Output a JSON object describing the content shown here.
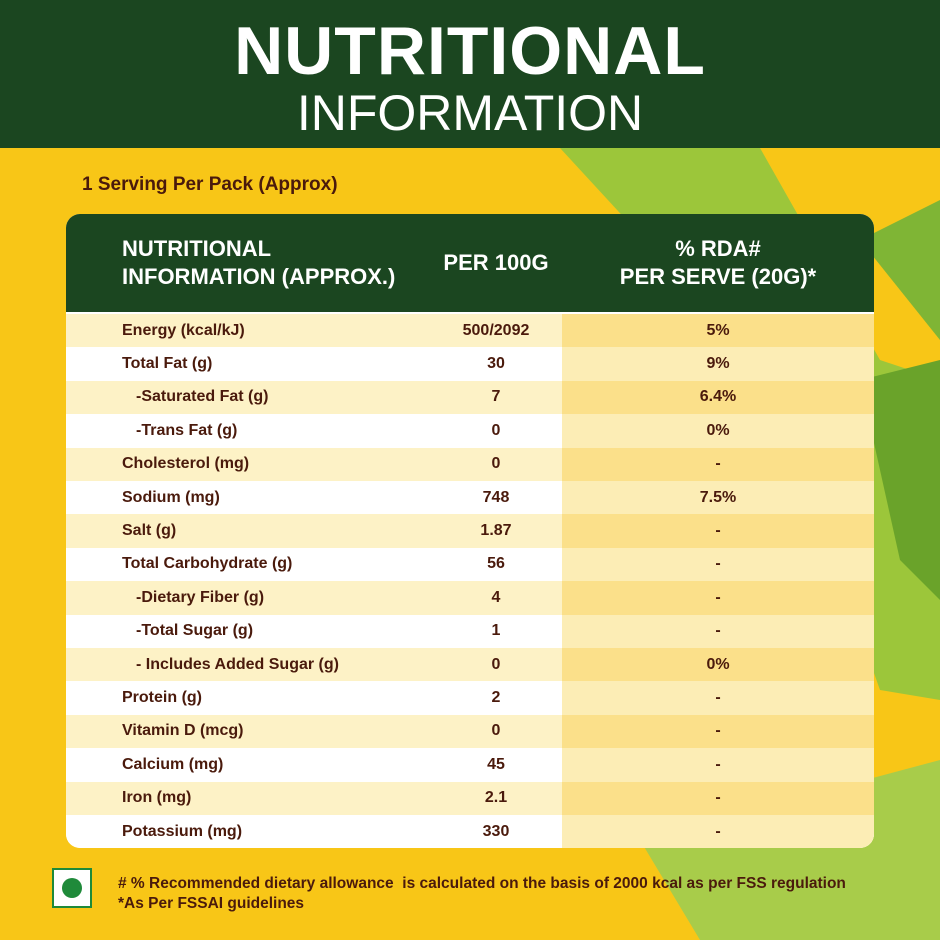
{
  "header": {
    "title_line1": "NUTRITIONAL",
    "title_line2": "INFORMATION"
  },
  "serving": "1 Serving Per Pack (Approx)",
  "table": {
    "columns": [
      "NUTRITIONAL\nINFORMATION (APPROX.)",
      "PER 100G",
      "% RDA#\nPER SERVE (20G)*"
    ],
    "rows": [
      [
        "Energy (kcal/kJ)",
        "500/2092",
        "5%"
      ],
      [
        "Total Fat (g)",
        "30",
        "9%"
      ],
      [
        "-Saturated Fat (g)",
        "7",
        "6.4%"
      ],
      [
        "-Trans Fat (g)",
        "0",
        "0%"
      ],
      [
        "Cholesterol (mg)",
        "0",
        "-"
      ],
      [
        "Sodium (mg)",
        "748",
        "7.5%"
      ],
      [
        "Salt (g)",
        "1.87",
        "-"
      ],
      [
        "Total Carbohydrate (g)",
        "56",
        "-"
      ],
      [
        "-Dietary Fiber (g)",
        "4",
        "-"
      ],
      [
        "-Total Sugar (g)",
        "1",
        "-"
      ],
      [
        "- Includes Added Sugar (g)",
        "0",
        "0%"
      ],
      [
        "Protein (g)",
        "2",
        "-"
      ],
      [
        "Vitamin D (mcg)",
        "0",
        "-"
      ],
      [
        "Calcium (mg)",
        "45",
        "-"
      ],
      [
        "Iron (mg)",
        "2.1",
        "-"
      ],
      [
        "Potassium (mg)",
        "330",
        "-"
      ]
    ]
  },
  "footnotes": [
    "# % Recommended dietary allowance  is calculated on the basis of 2000 kcal as per FSS regulation",
    "*As Per FSSAI guidelines"
  ]
}
